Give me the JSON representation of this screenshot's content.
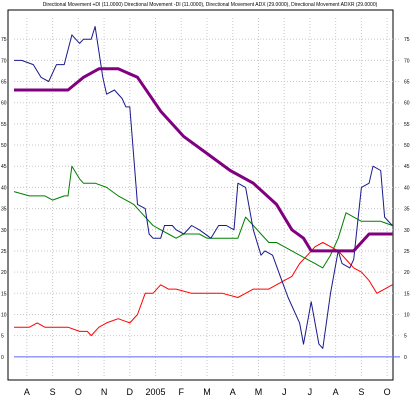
{
  "chart_data": {
    "type": "line",
    "title": "Directional Movement +DI (11.0000) Directional Movement -DI (11.0000), Directional Movement ADX (29.0000), Directional Movement ADXR (29.0000)",
    "xlabel": "",
    "ylabel": "",
    "ylim": [
      -5,
      80
    ],
    "y_ticks": [
      0,
      5,
      10,
      15,
      20,
      25,
      30,
      35,
      40,
      45,
      50,
      55,
      60,
      65,
      70,
      75
    ],
    "x_labels": [
      "A",
      "S",
      "O",
      "N",
      "D",
      "2005",
      "F",
      "M",
      "A",
      "M",
      "J",
      "J",
      "A",
      "S",
      "O"
    ],
    "grid": true,
    "baseline_value": 0,
    "colors": {
      "blue_series": "#1a1a8c",
      "green_series": "#008000",
      "red_series": "#ff0000",
      "purple_series": "#800080",
      "baseline": "#6666ff"
    },
    "series": [
      {
        "key": "blue_series",
        "x": [
          0,
          2,
          5,
          7,
          9,
          11,
          13,
          15,
          17,
          18,
          20,
          21,
          23,
          24,
          26,
          28,
          29,
          30,
          32,
          34,
          35,
          36,
          38,
          39,
          41,
          42,
          44,
          46,
          48,
          51,
          53,
          55,
          57,
          58,
          60,
          62,
          64,
          65,
          67,
          69,
          71,
          74,
          75,
          77,
          79,
          80,
          82,
          84,
          85,
          87,
          88,
          90,
          92,
          93,
          95,
          96,
          98,
          100,
          102,
          103
        ],
        "y": [
          70,
          70,
          69,
          66,
          65,
          69,
          69,
          75,
          74,
          75,
          75,
          78,
          65,
          62,
          63,
          61,
          59,
          59,
          35,
          35,
          29,
          28,
          28,
          30,
          30,
          30,
          29,
          31,
          30,
          28,
          31,
          31,
          29,
          41,
          41,
          30,
          24,
          25,
          24,
          19,
          14,
          6,
          2,
          13,
          3,
          2,
          15,
          25,
          22,
          21,
          23,
          40,
          41,
          45,
          44,
          33,
          31,
          0,
          0,
          0
        ],
        "_note": "placeholder"
      }
    ]
  }
}
